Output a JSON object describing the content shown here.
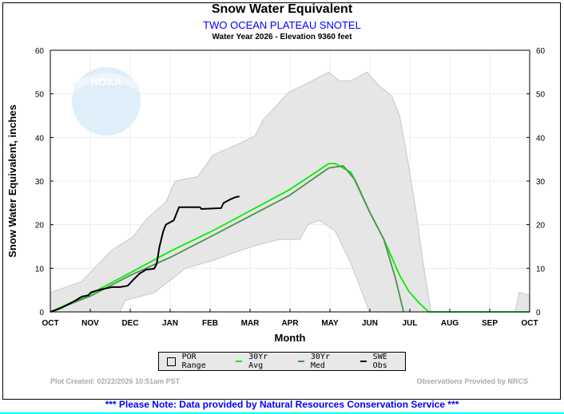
{
  "header": {
    "title": "Snow Water Equivalent",
    "station": "TWO OCEAN PLATEAU SNOTEL",
    "subtitle": "Water Year 2026 -  Elevation 9360 feet"
  },
  "legend": {
    "por": "POR Range",
    "avg": "30Yr Avg",
    "med": "30Yr Med",
    "obs": "SWE Obs"
  },
  "footer": {
    "created": "Plot Created: 02/22/2026 10:51am PST",
    "provider": "Observations Provided by NRCS",
    "note": "*** Please Note: Data provided by Natural Resources Conservation Service ***"
  },
  "logo_text": "NOAA",
  "chart_data": {
    "type": "line",
    "xlabel": "Month",
    "ylabel": "Snow Water Equivalent, inches",
    "x_ticks": [
      "OCT",
      "NOV",
      "DEC",
      "JAN",
      "FEB",
      "MAR",
      "APR",
      "MAY",
      "JUN",
      "JUL",
      "AUG",
      "SEP",
      "OCT"
    ],
    "xlim": [
      "2025-10-01",
      "2026-10-01"
    ],
    "ylim": [
      0,
      60
    ],
    "y_ticks": [
      0,
      10,
      20,
      30,
      40,
      50,
      60
    ],
    "grid": true,
    "legend_position": "bottom",
    "colors": {
      "por": "#e6e6e6",
      "por_edge": "#c8c8c8",
      "avg": "#00ee00",
      "med": "#4f8f4f",
      "obs": "#000000"
    },
    "por_max": [
      [
        "2025-10-01",
        4.4
      ],
      [
        "2025-10-25",
        7
      ],
      [
        "2025-11-06",
        10.8
      ],
      [
        "2025-11-17",
        14.2
      ],
      [
        "2025-12-03",
        17.2
      ],
      [
        "2025-12-13",
        21.2
      ],
      [
        "2025-12-28",
        25.2
      ],
      [
        "2026-01-04",
        30
      ],
      [
        "2026-01-21",
        31
      ],
      [
        "2026-02-02",
        36
      ],
      [
        "2026-02-22",
        38.6
      ],
      [
        "2026-03-06",
        40.4
      ],
      [
        "2026-03-12",
        44
      ],
      [
        "2026-04-01",
        50.5
      ],
      [
        "2026-04-12",
        52
      ],
      [
        "2026-05-01",
        55
      ],
      [
        "2026-05-09",
        53
      ],
      [
        "2026-05-18",
        53
      ],
      [
        "2026-05-30",
        55
      ],
      [
        "2026-06-08",
        52
      ],
      [
        "2026-06-18",
        49.5
      ],
      [
        "2026-06-24",
        45
      ],
      [
        "2026-06-30",
        35
      ],
      [
        "2026-07-06",
        24
      ],
      [
        "2026-07-12",
        11
      ],
      [
        "2026-07-18",
        0
      ],
      [
        "2026-09-20",
        0
      ],
      [
        "2026-09-23",
        4.5
      ],
      [
        "2026-10-01",
        3.8
      ]
    ],
    "por_min": [
      [
        "2025-10-01",
        0
      ],
      [
        "2025-11-23",
        0
      ],
      [
        "2025-11-27",
        2.6
      ],
      [
        "2025-12-19",
        4.4
      ],
      [
        "2026-01-12",
        10
      ],
      [
        "2026-02-02",
        11.8
      ],
      [
        "2026-02-18",
        13.6
      ],
      [
        "2026-03-06",
        15.2
      ],
      [
        "2026-03-24",
        16.6
      ],
      [
        "2026-04-09",
        16.6
      ],
      [
        "2026-04-15",
        20
      ],
      [
        "2026-04-24",
        21
      ],
      [
        "2026-05-06",
        18.5
      ],
      [
        "2026-05-18",
        11
      ],
      [
        "2026-05-27",
        4
      ],
      [
        "2026-06-01",
        0
      ],
      [
        "2026-10-01",
        0
      ]
    ],
    "series": [
      {
        "name": "30Yr Avg",
        "key": "avg",
        "points": [
          [
            "2025-10-01",
            0
          ],
          [
            "2025-11-01",
            4.2
          ],
          [
            "2025-12-01",
            9
          ],
          [
            "2026-01-01",
            14
          ],
          [
            "2026-02-01",
            18.5
          ],
          [
            "2026-03-01",
            23
          ],
          [
            "2026-04-01",
            28
          ],
          [
            "2026-05-01",
            34
          ],
          [
            "2026-05-06",
            34
          ],
          [
            "2026-05-18",
            32
          ],
          [
            "2026-06-01",
            23
          ],
          [
            "2026-06-12",
            16.6
          ],
          [
            "2026-06-24",
            8.4
          ],
          [
            "2026-07-01",
            4.7
          ],
          [
            "2026-07-09",
            2
          ],
          [
            "2026-07-16",
            0
          ],
          [
            "2026-10-01",
            0
          ]
        ]
      },
      {
        "name": "30Yr Med",
        "key": "med",
        "points": [
          [
            "2025-10-01",
            0
          ],
          [
            "2025-11-01",
            3.7
          ],
          [
            "2025-12-01",
            8.4
          ],
          [
            "2026-01-01",
            12.6
          ],
          [
            "2026-02-01",
            17.4
          ],
          [
            "2026-03-01",
            21.8
          ],
          [
            "2026-04-01",
            26.7
          ],
          [
            "2026-05-01",
            33
          ],
          [
            "2026-05-12",
            33.5
          ],
          [
            "2026-05-21",
            30.3
          ],
          [
            "2026-06-01",
            23
          ],
          [
            "2026-06-12",
            16.6
          ],
          [
            "2026-06-21",
            7.5
          ],
          [
            "2026-06-27",
            0
          ]
        ]
      },
      {
        "name": "SWE Obs",
        "key": "obs",
        "points": [
          [
            "2025-10-01",
            0
          ],
          [
            "2025-10-05",
            0.4
          ],
          [
            "2025-10-10",
            1
          ],
          [
            "2025-10-19",
            2.4
          ],
          [
            "2025-10-25",
            3.5
          ],
          [
            "2025-10-30",
            3.8
          ],
          [
            "2025-11-01",
            4.5
          ],
          [
            "2025-11-08",
            5.1
          ],
          [
            "2025-11-17",
            5.7
          ],
          [
            "2025-11-23",
            5.7
          ],
          [
            "2025-11-29",
            6
          ],
          [
            "2025-12-03",
            7.3
          ],
          [
            "2025-12-08",
            8.8
          ],
          [
            "2025-12-13",
            9.7
          ],
          [
            "2025-12-19",
            9.9
          ],
          [
            "2025-12-21",
            11
          ],
          [
            "2025-12-23",
            14.8
          ],
          [
            "2025-12-26",
            18.5
          ],
          [
            "2025-12-28",
            20
          ],
          [
            "2025-12-31",
            20.5
          ],
          [
            "2026-01-03",
            21
          ],
          [
            "2026-01-07",
            24
          ],
          [
            "2026-01-23",
            24
          ],
          [
            "2026-01-24",
            23.6
          ],
          [
            "2026-02-08",
            23.8
          ],
          [
            "2026-02-10",
            25
          ],
          [
            "2026-02-15",
            25.8
          ],
          [
            "2026-02-19",
            26.3
          ],
          [
            "2026-02-22",
            26.5
          ]
        ]
      }
    ]
  }
}
